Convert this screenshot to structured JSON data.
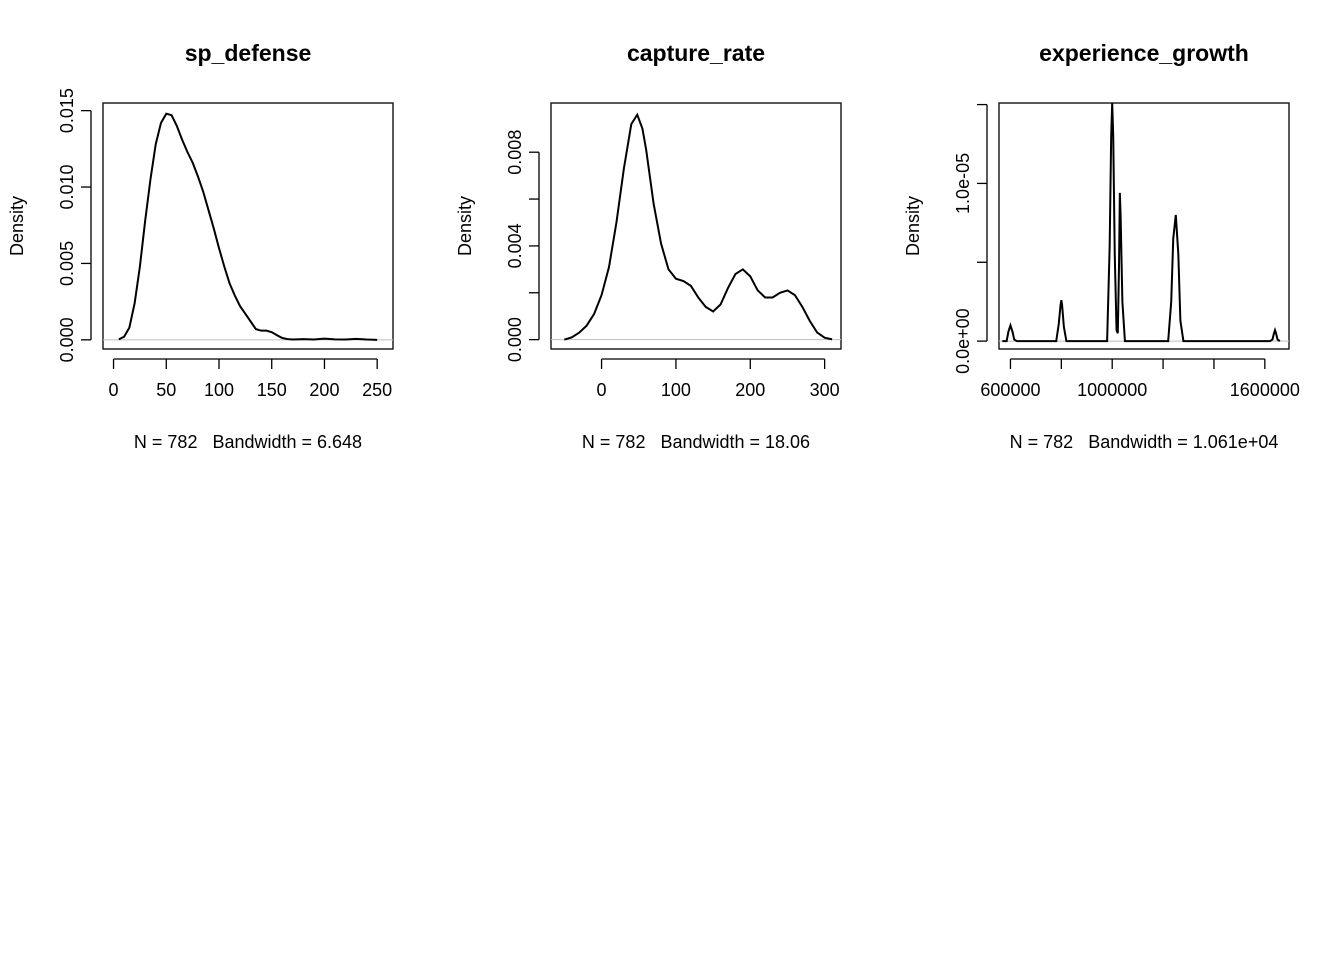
{
  "chart_data": [
    {
      "type": "line",
      "title": "sp_defense",
      "xlabel": "N = 782   Bandwidth = 6.648",
      "ylabel": "Density",
      "xlim": [
        -10,
        265
      ],
      "ylim": [
        -0.0006,
        0.0155
      ],
      "xticks": [
        0,
        50,
        100,
        150,
        200,
        250
      ],
      "xtick_labels": [
        "0",
        "50",
        "100",
        "150",
        "200",
        "250"
      ],
      "yticks": [
        0,
        0.005,
        0.01,
        0.015
      ],
      "ytick_labels": [
        "0.000",
        "0.005",
        "0.010",
        "0.015"
      ],
      "grid": false,
      "baseline": 0,
      "series": [
        {
          "x": [
            5,
            10,
            15,
            20,
            25,
            30,
            35,
            40,
            45,
            50,
            55,
            60,
            65,
            70,
            75,
            80,
            85,
            90,
            95,
            100,
            105,
            110,
            115,
            120,
            125,
            130,
            135,
            140,
            145,
            150,
            155,
            160,
            165,
            170,
            180,
            190,
            200,
            210,
            220,
            230,
            240,
            250
          ],
          "y": [
            3e-05,
            0.0002,
            0.0008,
            0.0024,
            0.0048,
            0.0078,
            0.0105,
            0.0128,
            0.0142,
            0.0148,
            0.0147,
            0.014,
            0.0131,
            0.0123,
            0.0116,
            0.0107,
            0.0097,
            0.0085,
            0.0073,
            0.006,
            0.0048,
            0.0037,
            0.0029,
            0.0022,
            0.0017,
            0.0012,
            0.0007,
            0.0006,
            0.0006,
            0.0005,
            0.0003,
            0.00012,
            5e-05,
            2e-05,
            5e-05,
            2e-05,
            8e-05,
            3e-05,
            2e-05,
            6e-05,
            2e-05,
            0.0
          ]
        }
      ]
    },
    {
      "type": "line",
      "title": "capture_rate",
      "xlabel": "N = 782   Bandwidth = 18.06",
      "ylabel": "Density",
      "xlim": [
        -68,
        322
      ],
      "ylim": [
        -0.0004,
        0.0101
      ],
      "xticks": [
        0,
        100,
        200,
        300
      ],
      "xtick_labels": [
        "0",
        "100",
        "200",
        "300"
      ],
      "yticks": [
        0,
        0.002,
        0.004,
        0.006,
        0.008
      ],
      "ytick_labels": [
        "0.000",
        "",
        "0.004",
        "",
        "0.008"
      ],
      "grid": false,
      "baseline": 0,
      "series": [
        {
          "x": [
            -50,
            -40,
            -30,
            -20,
            -10,
            0,
            10,
            20,
            30,
            40,
            48,
            55,
            60,
            70,
            80,
            90,
            100,
            110,
            120,
            130,
            140,
            150,
            160,
            170,
            180,
            190,
            200,
            210,
            220,
            230,
            240,
            250,
            260,
            270,
            280,
            290,
            300,
            310
          ],
          "y": [
            0.0,
            0.0001,
            0.0003,
            0.0006,
            0.0011,
            0.0019,
            0.0031,
            0.005,
            0.0073,
            0.0092,
            0.0096,
            0.009,
            0.0081,
            0.0058,
            0.0041,
            0.003,
            0.0026,
            0.0025,
            0.0023,
            0.0018,
            0.0014,
            0.0012,
            0.0015,
            0.0022,
            0.0028,
            0.003,
            0.0027,
            0.0021,
            0.0018,
            0.0018,
            0.002,
            0.0021,
            0.0019,
            0.0014,
            0.0008,
            0.0003,
            8e-05,
            1e-05
          ]
        }
      ]
    },
    {
      "type": "line",
      "title": "experience_growth",
      "xlabel": "N = 782   Bandwidth = 1.061e+04",
      "ylabel": "Density",
      "xlim": [
        555000,
        1695000
      ],
      "ylim": [
        -5e-07,
        1.51e-05
      ],
      "xticks": [
        600000,
        800000,
        1000000,
        1200000,
        1400000,
        1600000
      ],
      "xtick_labels": [
        "600000",
        "",
        "1000000",
        "",
        "",
        "1600000"
      ],
      "yticks": [
        0,
        5e-06,
        1e-05,
        1.5e-05
      ],
      "ytick_labels": [
        "0.0e+00",
        "",
        "1.0e-05",
        ""
      ],
      "grid": false,
      "baseline": 0,
      "series": [
        {
          "x": [
            568000,
            585000,
            592000,
            600000,
            608000,
            615000,
            625000,
            780000,
            790000,
            797000,
            800000,
            803000,
            810000,
            820000,
            980000,
            990000,
            996000,
            1000000,
            1004000,
            1010000,
            1017000,
            1022000,
            1027000,
            1030000,
            1033000,
            1040000,
            1050000,
            1220000,
            1232000,
            1240000,
            1250000,
            1260000,
            1268000,
            1280000,
            1620000,
            1630000,
            1636000,
            1640000,
            1644000,
            1650000,
            1659000
          ],
          "y": [
            0,
            0,
            6e-07,
            1e-06,
            6e-07,
            1e-07,
            0,
            0,
            1.1e-06,
            2.3e-06,
            2.6e-06,
            2.3e-06,
            9e-07,
            0,
            0,
            6e-06,
            1.3e-05,
            1.51e-05,
            1.3e-05,
            5.5e-06,
            7e-07,
            5e-07,
            5e-06,
            9.4e-06,
            8e-06,
            2.5e-06,
            0,
            0,
            2.5e-06,
            6.5e-06,
            8e-06,
            5.5e-06,
            1.3e-06,
            0,
            0,
            1e-07,
            5e-07,
            7e-07,
            5e-07,
            1e-07,
            0
          ]
        }
      ]
    }
  ]
}
